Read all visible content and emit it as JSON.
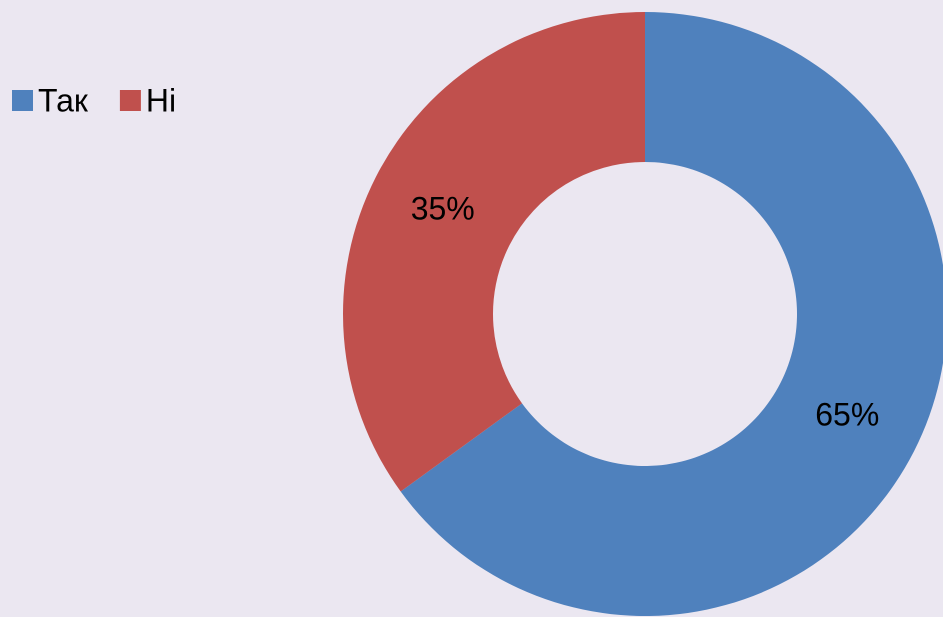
{
  "chart_data": {
    "type": "donut",
    "categories": [
      "Так",
      "Ні"
    ],
    "values": [
      65,
      35
    ],
    "value_labels": [
      "65%",
      "35%"
    ],
    "colors": [
      "#4f81bd",
      "#c0504d"
    ],
    "legend": "top-left"
  }
}
